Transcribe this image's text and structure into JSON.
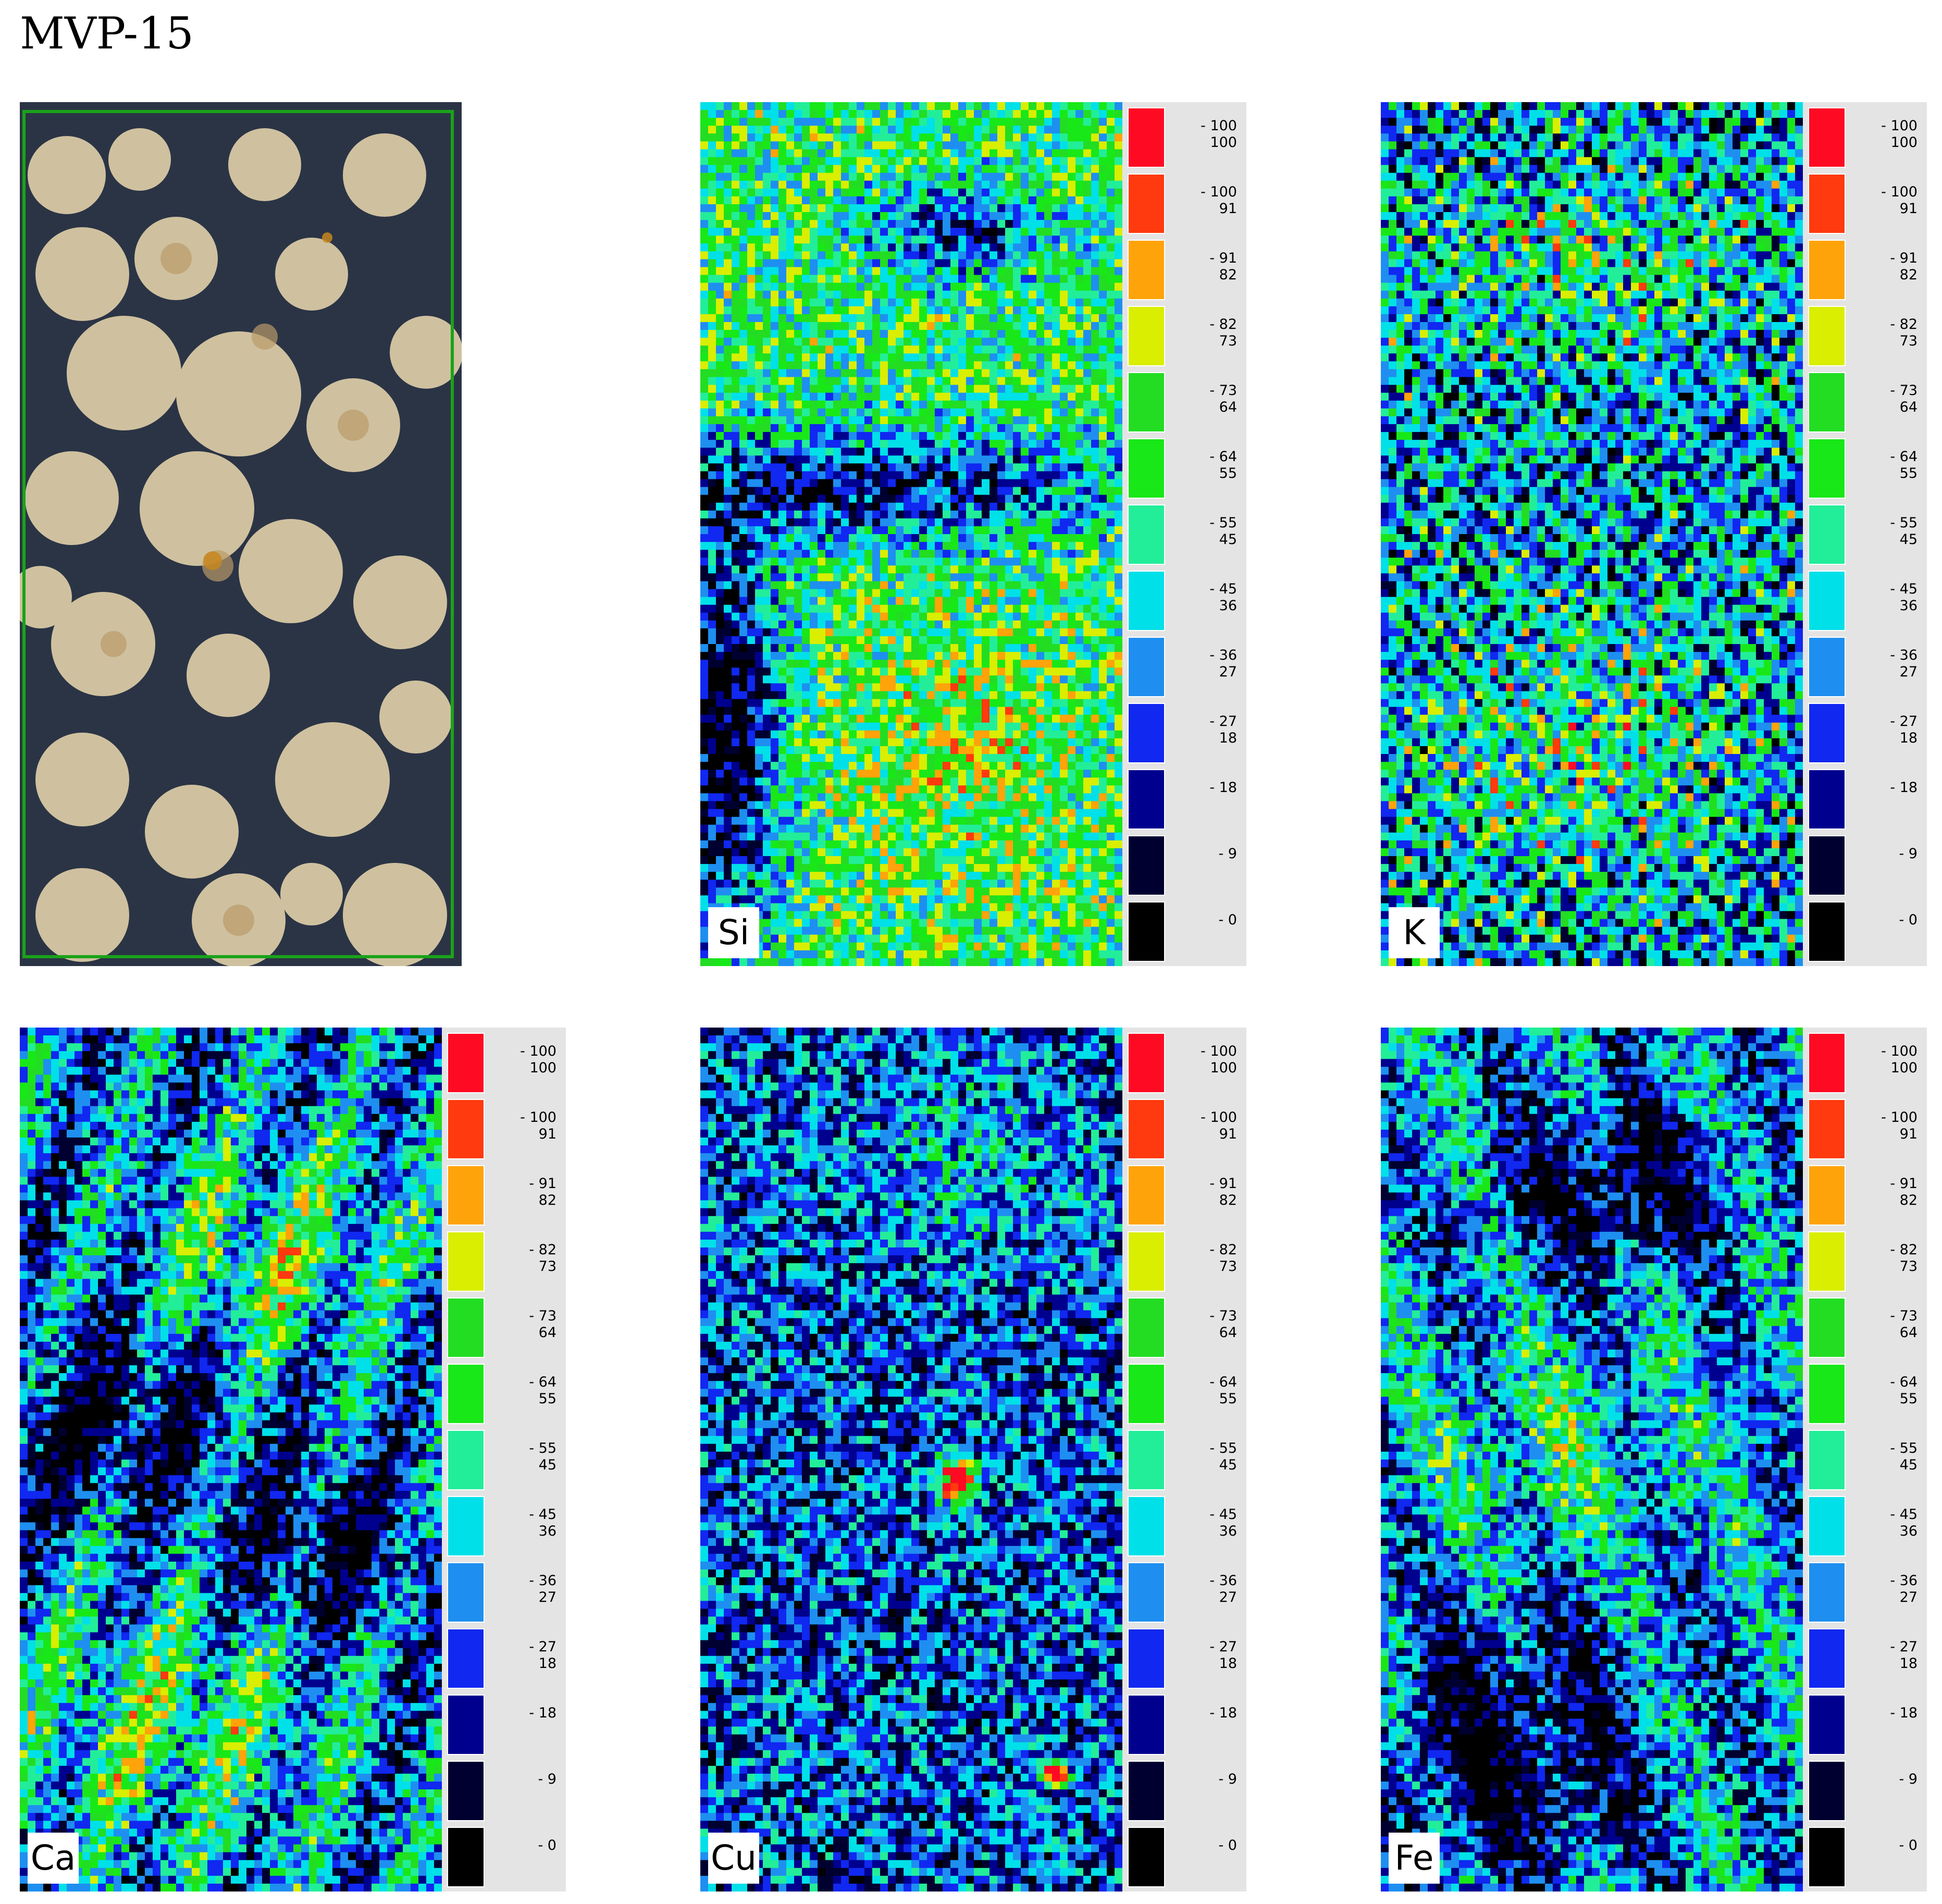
{
  "figure": {
    "title": "MVP-15"
  },
  "photo": {
    "description_icon": "sample-photo-icon",
    "frame_color": "#1aa31a"
  },
  "legend_scale": {
    "swatch_colors": [
      "#ff0a23",
      "#ff3a0e",
      "#ffa30a",
      "#d9ee00",
      "#22dd22",
      "#18e818",
      "#22ee99",
      "#00e0e8",
      "#1e8ff0",
      "#1028f0",
      "#00008f",
      "#000030",
      "#000000"
    ],
    "labels": [
      {
        "top": "- 100",
        "bottom": "100"
      },
      {
        "top": "- 100",
        "bottom": "91"
      },
      {
        "top": "- 91",
        "bottom": "82"
      },
      {
        "top": "- 82",
        "bottom": "73"
      },
      {
        "top": "- 73",
        "bottom": "64"
      },
      {
        "top": "- 64",
        "bottom": "55"
      },
      {
        "top": "- 55",
        "bottom": "45"
      },
      {
        "top": "- 45",
        "bottom": "36"
      },
      {
        "top": "- 36",
        "bottom": "27"
      },
      {
        "top": "- 27",
        "bottom": "18"
      },
      {
        "top": "- 18",
        "bottom": ""
      },
      {
        "top": "- 9",
        "bottom": ""
      },
      {
        "top": "- 0",
        "bottom": ""
      }
    ]
  },
  "maps": [
    {
      "element": "Si"
    },
    {
      "element": "K"
    },
    {
      "element": "Ca"
    },
    {
      "element": "Cu"
    },
    {
      "element": "Fe"
    }
  ]
}
